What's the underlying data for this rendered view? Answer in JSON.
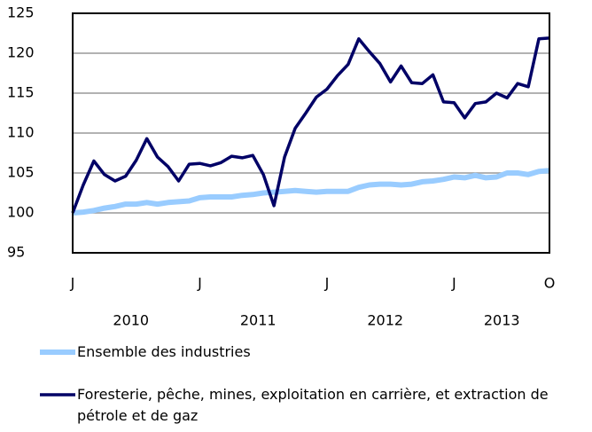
{
  "chart_data": {
    "type": "line",
    "categories": [
      "J",
      null,
      null,
      null,
      null,
      null,
      null,
      null,
      null,
      null,
      null,
      null,
      "J",
      null,
      null,
      null,
      null,
      null,
      null,
      null,
      null,
      null,
      null,
      null,
      "J",
      null,
      null,
      null,
      null,
      null,
      null,
      null,
      null,
      null,
      null,
      null,
      "J",
      null,
      null,
      null,
      null,
      null,
      null,
      null,
      null,
      "O"
    ],
    "years": [
      "2010",
      "2011",
      "2012",
      "2013"
    ],
    "series": [
      {
        "name": "Ensemble des industries",
        "color": "#99ccff",
        "values": [
          100,
          100.1,
          100.3,
          100.6,
          100.8,
          101.1,
          101.1,
          101.3,
          101.1,
          101.3,
          101.4,
          101.5,
          101.9,
          102.0,
          102.0,
          102.0,
          102.2,
          102.3,
          102.5,
          102.6,
          102.7,
          102.8,
          102.7,
          102.6,
          102.7,
          102.7,
          102.7,
          103.2,
          103.5,
          103.6,
          103.6,
          103.5,
          103.6,
          103.9,
          104.0,
          104.2,
          104.5,
          104.4,
          104.7,
          104.4,
          104.5,
          105.0,
          105.0,
          104.8,
          105.2,
          105.3
        ]
      },
      {
        "name": "Foresterie, pêche, mines, exploitation en carrière, et extraction de pétrole et de gaz",
        "color": "#000066",
        "values": [
          100,
          103.5,
          106.5,
          104.8,
          104.0,
          104.6,
          106.6,
          109.3,
          107.0,
          105.8,
          104.0,
          106.1,
          106.2,
          105.9,
          106.3,
          107.1,
          106.9,
          107.2,
          104.8,
          100.9,
          107.0,
          110.6,
          112.5,
          114.5,
          115.5,
          117.2,
          118.6,
          121.8,
          120.2,
          118.7,
          116.4,
          118.4,
          116.3,
          116.2,
          117.3,
          113.9,
          113.8,
          111.9,
          113.7,
          113.9,
          115.0,
          114.4,
          116.2,
          115.8,
          121.8,
          121.9
        ]
      }
    ],
    "ylim": [
      95,
      125
    ],
    "yticks": [
      95,
      100,
      105,
      110,
      115,
      120,
      125
    ],
    "grid": true
  }
}
